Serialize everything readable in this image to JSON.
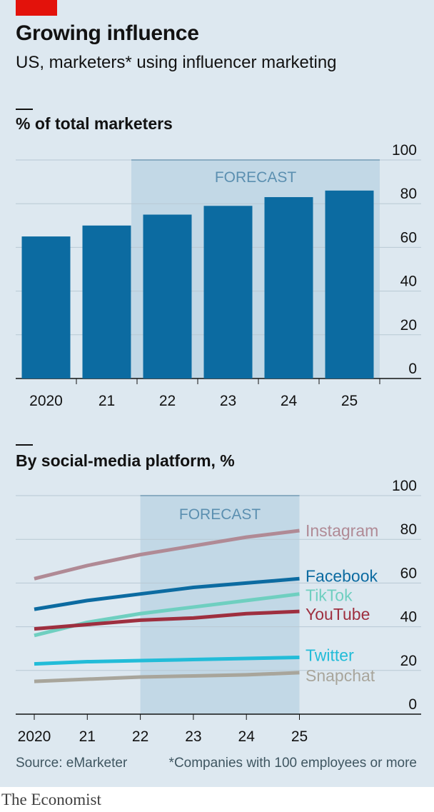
{
  "title": "Growing influence",
  "subtitle": "US, marketers* using influencer marketing",
  "source": "Source: eMarketer",
  "footnote": "*Companies with 100 employees or more",
  "brand": "The Economist",
  "colors": {
    "bar": "#0c6ba1",
    "forecast_shade": "#c2d8e6",
    "forecast_text": "#5b8fb0",
    "brand_red": "#e3120b"
  },
  "chart_data": [
    {
      "type": "bar",
      "title": "% of total marketers",
      "categories": [
        "2020",
        "21",
        "22",
        "23",
        "24",
        "25"
      ],
      "values": [
        65,
        70,
        75,
        79,
        83,
        86
      ],
      "ylim": [
        0,
        100
      ],
      "yticks": [
        0,
        20,
        40,
        60,
        80,
        100
      ],
      "forecast_label": "FORECAST",
      "forecast_from": "22",
      "grid": true
    },
    {
      "type": "line",
      "title": "By social-media platform, %",
      "x": [
        "2020",
        "21",
        "22",
        "23",
        "24",
        "25"
      ],
      "ylim": [
        0,
        100
      ],
      "yticks": [
        0,
        20,
        40,
        60,
        80,
        100
      ],
      "forecast_label": "FORECAST",
      "forecast_from": "22",
      "grid": true,
      "series": [
        {
          "name": "Instagram",
          "color": "#b08a95",
          "values": [
            62,
            68,
            73,
            77,
            81,
            84
          ]
        },
        {
          "name": "Facebook",
          "color": "#0c6ba1",
          "values": [
            48,
            52,
            55,
            58,
            60,
            62
          ]
        },
        {
          "name": "TikTok",
          "color": "#6fcfc0",
          "values": [
            36,
            42,
            46,
            49,
            52,
            55
          ]
        },
        {
          "name": "YouTube",
          "color": "#9e2f3f",
          "values": [
            39,
            41,
            43,
            44,
            46,
            47
          ]
        },
        {
          "name": "Twitter",
          "color": "#22bcd8",
          "values": [
            23,
            24,
            24.5,
            25,
            25.5,
            26
          ]
        },
        {
          "name": "Snapchat",
          "color": "#a8a59b",
          "values": [
            15,
            16,
            17,
            17.5,
            18,
            19
          ]
        }
      ]
    }
  ]
}
